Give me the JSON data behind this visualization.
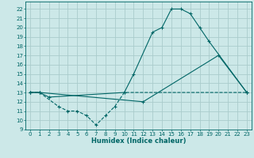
{
  "xlabel": "Humidex (Indice chaleur)",
  "bg_color": "#cce8e8",
  "grid_color": "#aacccc",
  "line_color": "#006666",
  "xlim": [
    -0.5,
    23.5
  ],
  "ylim": [
    9,
    22.8
  ],
  "yticks": [
    9,
    10,
    11,
    12,
    13,
    14,
    15,
    16,
    17,
    18,
    19,
    20,
    21,
    22
  ],
  "xticks": [
    0,
    1,
    2,
    3,
    4,
    5,
    6,
    7,
    8,
    9,
    10,
    11,
    12,
    13,
    14,
    15,
    16,
    17,
    18,
    19,
    20,
    21,
    22,
    23
  ],
  "x_max": [
    0,
    1,
    2,
    10,
    11,
    13,
    14,
    15,
    16,
    17,
    18,
    19,
    23
  ],
  "y_max": [
    13,
    13,
    12.5,
    13,
    15,
    19.5,
    20,
    22,
    22,
    21.5,
    20,
    18.5,
    13
  ],
  "x_mean": [
    0,
    1,
    12,
    20,
    23
  ],
  "y_mean": [
    13,
    13,
    12,
    17,
    13
  ],
  "x_min": [
    0,
    1,
    3,
    4,
    5,
    6,
    7,
    8,
    9,
    10,
    23
  ],
  "y_min": [
    13,
    13,
    11.5,
    11.0,
    11.0,
    10.5,
    9.5,
    10.5,
    11.5,
    13,
    13
  ],
  "xlabel_fontsize": 6,
  "tick_fontsize": 5
}
